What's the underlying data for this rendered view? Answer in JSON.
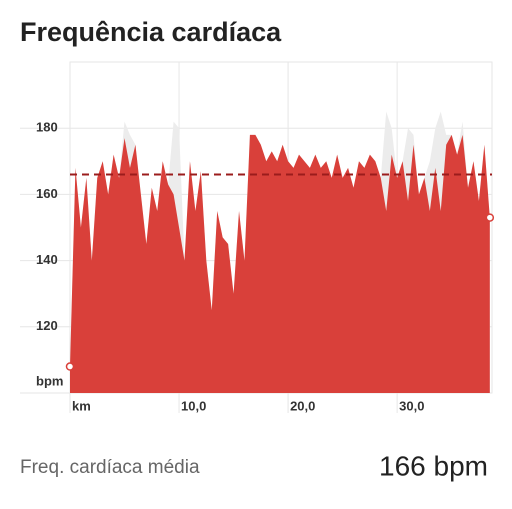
{
  "chart_data": {
    "type": "area",
    "title": "Frequência cardíaca",
    "x": [
      0,
      0.5,
      1,
      1.5,
      2,
      2.5,
      3,
      3.5,
      4,
      4.5,
      5,
      5.5,
      6,
      6.5,
      7,
      7.5,
      8,
      8.5,
      9,
      9.5,
      10,
      10.5,
      11,
      11.5,
      12,
      12.5,
      13,
      13.5,
      14,
      14.5,
      15,
      15.5,
      16,
      16.5,
      17,
      17.5,
      18,
      18.5,
      19,
      19.5,
      20,
      20.5,
      21,
      21.5,
      22,
      22.5,
      23,
      23.5,
      24,
      24.5,
      25,
      25.5,
      26,
      26.5,
      27,
      27.5,
      28,
      28.5,
      29,
      29.5,
      30,
      30.5,
      31,
      31.5,
      32,
      32.5,
      33,
      33.5,
      34,
      34.5,
      35,
      35.5,
      36,
      36.5,
      37,
      37.5,
      38,
      38.5
    ],
    "series": [
      {
        "color": "#ececec",
        "values": [
          108,
          168,
          150,
          165,
          140,
          165,
          170,
          160,
          172,
          165,
          182,
          178,
          175,
          160,
          145,
          162,
          155,
          170,
          163,
          182,
          180,
          140,
          170,
          155,
          167,
          140,
          125,
          155,
          147,
          145,
          130,
          155,
          140,
          178,
          178,
          175,
          170,
          173,
          170,
          175,
          170,
          168,
          172,
          170,
          168,
          172,
          168,
          170,
          165,
          172,
          165,
          168,
          162,
          170,
          168,
          172,
          170,
          165,
          185,
          180,
          165,
          170,
          180,
          178,
          160,
          165,
          170,
          180,
          185,
          178,
          178,
          172,
          182,
          162,
          170,
          158,
          175,
          153
        ]
      },
      {
        "color": "#d9403a",
        "values": [
          108,
          168,
          150,
          165,
          140,
          165,
          170,
          160,
          172,
          165,
          177,
          168,
          175,
          160,
          145,
          162,
          155,
          170,
          163,
          160,
          150,
          140,
          170,
          155,
          167,
          140,
          125,
          155,
          147,
          145,
          130,
          155,
          140,
          178,
          178,
          175,
          170,
          173,
          170,
          175,
          170,
          168,
          172,
          170,
          168,
          172,
          168,
          170,
          165,
          172,
          165,
          168,
          162,
          170,
          168,
          172,
          170,
          165,
          155,
          172,
          165,
          170,
          158,
          175,
          160,
          165,
          155,
          168,
          155,
          175,
          178,
          172,
          178,
          162,
          170,
          158,
          175,
          153
        ]
      }
    ],
    "xlim": [
      0,
      38.7
    ],
    "xticks": [
      {
        "value": 0,
        "label": "km"
      },
      {
        "value": 10,
        "label": "10,0"
      },
      {
        "value": 20,
        "label": "20,0"
      },
      {
        "value": 30,
        "label": "30,0"
      }
    ],
    "ylim": [
      100,
      200
    ],
    "yticks": [
      {
        "value": 100,
        "label": "bpm"
      },
      120,
      140,
      160,
      180
    ],
    "grid": true,
    "average": {
      "label": "Freq. cardíaca média",
      "value": 166,
      "value_label": "166 bpm",
      "color": "#9b1c1c"
    }
  }
}
